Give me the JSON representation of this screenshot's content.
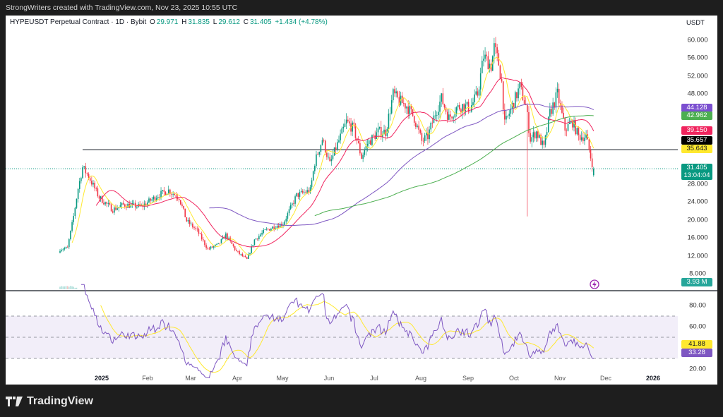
{
  "credit": "StrongWriters created with TradingView.com, Nov 23, 2025 10:55 UTC",
  "legend": {
    "symbol": "HYPEUSDT Perpetual Contract · 1D · Bybit",
    "o_label": "O",
    "o": "29.971",
    "h_label": "H",
    "h": "31.835",
    "l_label": "L",
    "l": "29.612",
    "c_label": "C",
    "c": "31.405",
    "change": "+1.434 (+4.78%)"
  },
  "price_axis": {
    "unit": "USDT",
    "ticks": [
      "60.000",
      "56.000",
      "52.000",
      "48.000",
      "28.000",
      "24.000",
      "20.000",
      "16.000",
      "12.000",
      "8.000"
    ],
    "labels": [
      {
        "text": "44.128",
        "bg": "#7b4fd0",
        "fg": "#ffffff"
      },
      {
        "text": "42.962",
        "bg": "#4caf50",
        "fg": "#ffffff"
      },
      {
        "text": "39.150",
        "bg": "#f0245e",
        "fg": "#ffffff"
      },
      {
        "text": "35.657",
        "bg": "#000000",
        "fg": "#ffffff"
      },
      {
        "text": "35.643",
        "bg": "#ffe92f",
        "fg": "#131722"
      },
      {
        "text": "31.405",
        "bg": "#089981",
        "fg": "#ffffff"
      },
      {
        "text": "13:04:04",
        "bg": "#089981",
        "fg": "#ffffff"
      },
      {
        "text": "3.93 M",
        "bg": "#26a69a",
        "fg": "#ffffff"
      }
    ]
  },
  "rsi_axis": {
    "ticks": [
      "80.00",
      "60.00",
      "20.00"
    ],
    "labels": [
      {
        "text": "41.88",
        "bg": "#ffe92f",
        "fg": "#131722"
      },
      {
        "text": "33.28",
        "bg": "#7e57c2",
        "fg": "#ffffff"
      }
    ]
  },
  "time_axis": [
    "2025",
    "Feb",
    "Mar",
    "Apr",
    "May",
    "Jun",
    "Jul",
    "Aug",
    "Sep",
    "Oct",
    "Nov",
    "Dec",
    "2026"
  ],
  "brand": "TradingView",
  "colors": {
    "up": "#089981",
    "down": "#f23645",
    "ma_fast": "#ffe92f",
    "ma_mid": "#f0245e",
    "ma_slow": "#7e57c2",
    "ma_long": "#4caf50",
    "rsi": "#7e57c2",
    "rsi_ma": "#ffe92f"
  },
  "chart_data": {
    "type": "candlestick",
    "symbol": "HYPEUSDT",
    "interval": "1D",
    "ylim": [
      8,
      60
    ],
    "horizontal_line": 35.657,
    "last_candle": {
      "date": "2025-11-23",
      "open": 29.971,
      "high": 31.835,
      "low": 29.612,
      "close": 31.405
    },
    "approx_closes": [
      [
        "2024-12-04",
        13.5
      ],
      [
        "2024-12-09",
        13.8
      ],
      [
        "2024-12-13",
        20.8
      ],
      [
        "2024-12-16",
        27
      ],
      [
        "2024-12-19",
        31.7
      ],
      [
        "2024-12-23",
        29.7
      ],
      [
        "2024-12-30",
        25
      ],
      [
        "2025-01-08",
        22.3
      ],
      [
        "2025-01-15",
        23.4
      ],
      [
        "2025-01-27",
        23
      ],
      [
        "2025-02-07",
        25.5
      ],
      [
        "2025-02-14",
        26.6
      ],
      [
        "2025-02-21",
        25
      ],
      [
        "2025-02-26",
        19.8
      ],
      [
        "2025-03-05",
        17.6
      ],
      [
        "2025-03-12",
        13.5
      ],
      [
        "2025-03-19",
        14.5
      ],
      [
        "2025-03-24",
        16.7
      ],
      [
        "2025-03-31",
        13
      ],
      [
        "2025-04-07",
        11.2
      ],
      [
        "2025-04-12",
        15.6
      ],
      [
        "2025-04-19",
        17.6
      ],
      [
        "2025-04-26",
        18.7
      ],
      [
        "2025-05-01",
        19.2
      ],
      [
        "2025-05-10",
        25.5
      ],
      [
        "2025-05-19",
        26.6
      ],
      [
        "2025-05-22",
        32.8
      ],
      [
        "2025-05-27",
        38
      ],
      [
        "2025-06-01",
        32.4
      ],
      [
        "2025-06-05",
        36
      ],
      [
        "2025-06-12",
        41.8
      ],
      [
        "2025-06-17",
        40.2
      ],
      [
        "2025-06-22",
        34
      ],
      [
        "2025-06-26",
        37
      ],
      [
        "2025-07-03",
        39.6
      ],
      [
        "2025-07-08",
        39.6
      ],
      [
        "2025-07-13",
        48
      ],
      [
        "2025-07-17",
        46.5
      ],
      [
        "2025-07-22",
        45.4
      ],
      [
        "2025-07-27",
        42.7
      ],
      [
        "2025-08-01",
        37.5
      ],
      [
        "2025-08-05",
        38.6
      ],
      [
        "2025-08-10",
        43.8
      ],
      [
        "2025-08-14",
        47
      ],
      [
        "2025-08-19",
        42.7
      ],
      [
        "2025-08-24",
        44.9
      ],
      [
        "2025-08-28",
        45.4
      ],
      [
        "2025-09-02",
        44.9
      ],
      [
        "2025-09-07",
        48
      ],
      [
        "2025-09-11",
        56.4
      ],
      [
        "2025-09-16",
        54.3
      ],
      [
        "2025-09-18",
        58.4
      ],
      [
        "2025-09-21",
        54.8
      ],
      [
        "2025-09-23",
        50.6
      ],
      [
        "2025-09-25",
        41.2
      ],
      [
        "2025-09-30",
        45.4
      ],
      [
        "2025-10-05",
        49.6
      ],
      [
        "2025-10-09",
        45.4
      ],
      [
        "2025-10-12",
        38
      ],
      [
        "2025-10-16",
        39.6
      ],
      [
        "2025-10-21",
        36
      ],
      [
        "2025-10-25",
        43.8
      ],
      [
        "2025-10-30",
        48
      ],
      [
        "2025-11-04",
        40.2
      ],
      [
        "2025-11-09",
        41.8
      ],
      [
        "2025-11-13",
        38.6
      ],
      [
        "2025-11-18",
        38.6
      ],
      [
        "2025-11-21",
        34
      ],
      [
        "2025-11-23",
        31.405
      ]
    ],
    "notable_lows": [
      [
        "2025-10-10",
        20.8
      ]
    ],
    "moving_averages": [
      {
        "last": 35.643,
        "color": "#ffe92f"
      },
      {
        "last": 39.15,
        "color": "#f0245e"
      },
      {
        "last": 44.128,
        "color": "#7e57c2"
      },
      {
        "last": 42.962,
        "color": "#4caf50"
      }
    ],
    "volume_last": "3.93M",
    "rsi": {
      "last": 33.28,
      "ma_last": 41.88,
      "upper": 70,
      "middle": 50,
      "lower": 30,
      "ylim": [
        20,
        90
      ]
    }
  }
}
